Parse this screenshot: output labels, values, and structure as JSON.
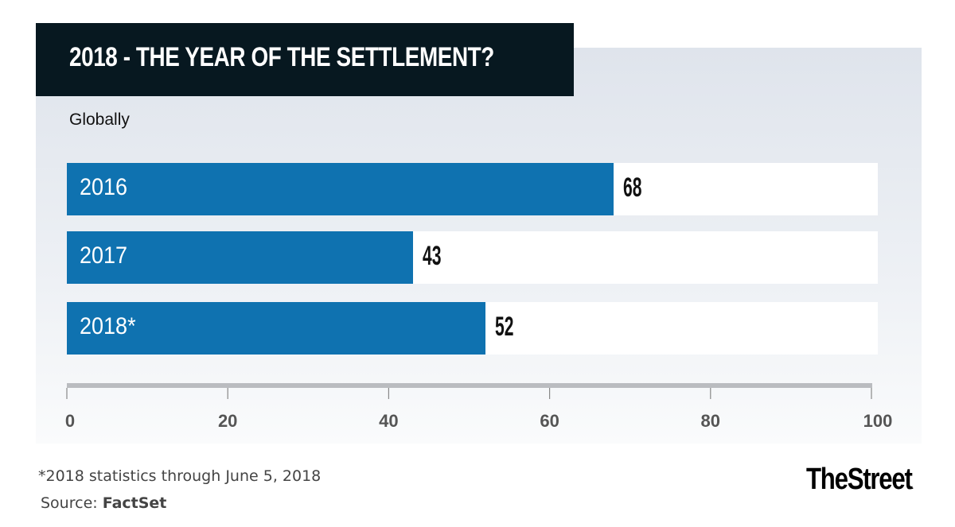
{
  "header": {
    "title": "2018 - THE YEAR OF THE SETTLEMENT?",
    "subtitle": "Globally"
  },
  "footer": {
    "footnote": "*2018 statistics through June 5, 2018",
    "source_prefix": "Source: ",
    "source_name": "FactSet",
    "logo": "TheStreet",
    "logo_mark": "."
  },
  "colors": {
    "bar": "#0f72b0",
    "title_bg": "#071820",
    "track": "#ffffff"
  },
  "chart_data": {
    "type": "bar",
    "orientation": "horizontal",
    "title": "2018 - THE YEAR OF THE SETTLEMENT?",
    "subtitle": "Globally",
    "categories": [
      "2016",
      "2017",
      "2018*"
    ],
    "values": [
      68,
      43,
      52
    ],
    "value_labels": [
      "68",
      "43",
      "52"
    ],
    "xlabel": "",
    "ylabel": "",
    "xlim": [
      0,
      100
    ],
    "x_ticks": [
      0,
      20,
      40,
      60,
      80,
      100
    ],
    "x_tick_labels": [
      "0",
      "20",
      "40",
      "60",
      "80",
      "100"
    ],
    "grid": false,
    "legend": "none",
    "annotations": [
      "*2018 statistics through June 5, 2018"
    ],
    "source": "FactSet"
  }
}
